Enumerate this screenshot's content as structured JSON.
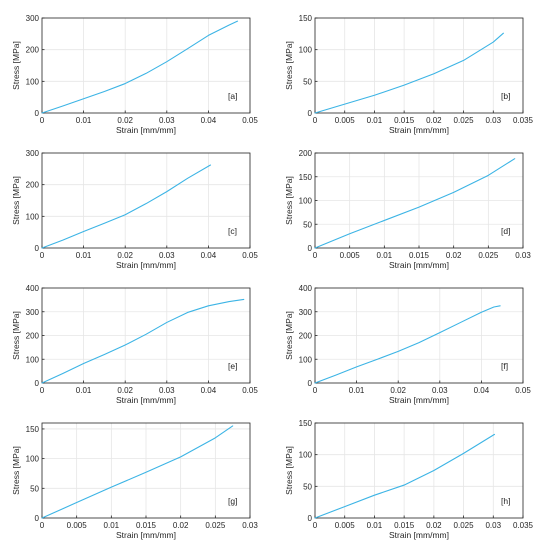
{
  "chart_data": [
    {
      "type": "line",
      "panel_label": "[a]",
      "xlabel": "Strain [mm/mm]",
      "ylabel": "Stress [MPa]",
      "xlim": [
        0,
        0.05
      ],
      "ylim": [
        0,
        300
      ],
      "xticks": [
        0,
        0.01,
        0.02,
        0.03,
        0.04,
        0.05
      ],
      "xtick_labels": [
        "0",
        "0.01",
        "0.02",
        "0.03",
        "0.04",
        "0.05"
      ],
      "yticks": [
        0,
        100,
        200,
        300
      ],
      "ytick_labels": [
        "0",
        "100",
        "200",
        "300"
      ],
      "grid": true,
      "series": [
        {
          "x": [
            0,
            0.005,
            0.01,
            0.015,
            0.02,
            0.025,
            0.03,
            0.035,
            0.04,
            0.045,
            0.047
          ],
          "y": [
            0,
            22,
            45,
            68,
            93,
            125,
            162,
            203,
            245,
            278,
            290
          ]
        }
      ]
    },
    {
      "type": "line",
      "panel_label": "[b]",
      "xlabel": "Strain [mm/mm]",
      "ylabel": "Stress [MPa]",
      "xlim": [
        0,
        0.035
      ],
      "ylim": [
        0,
        150
      ],
      "xticks": [
        0,
        0.005,
        0.01,
        0.015,
        0.02,
        0.025,
        0.03,
        0.035
      ],
      "xtick_labels": [
        "0",
        "0.005",
        "0.01",
        "0.015",
        "0.02",
        "0.025",
        "0.03",
        "0.035"
      ],
      "yticks": [
        0,
        50,
        100,
        150
      ],
      "ytick_labels": [
        "0",
        "50",
        "100",
        "150"
      ],
      "grid": true,
      "series": [
        {
          "x": [
            0,
            0.005,
            0.01,
            0.015,
            0.02,
            0.025,
            0.03,
            0.0317
          ],
          "y": [
            0,
            14,
            28,
            44,
            62,
            83,
            112,
            126
          ]
        }
      ]
    },
    {
      "type": "line",
      "panel_label": "[c]",
      "xlabel": "Strain [mm/mm]",
      "ylabel": "Stress [MPa]",
      "xlim": [
        0,
        0.05
      ],
      "ylim": [
        0,
        300
      ],
      "xticks": [
        0,
        0.01,
        0.02,
        0.03,
        0.04,
        0.05
      ],
      "xtick_labels": [
        "0",
        "0.01",
        "0.02",
        "0.03",
        "0.04",
        "0.05"
      ],
      "yticks": [
        0,
        100,
        200,
        300
      ],
      "ytick_labels": [
        "0",
        "100",
        "200",
        "300"
      ],
      "grid": true,
      "series": [
        {
          "x": [
            0,
            0.005,
            0.01,
            0.015,
            0.02,
            0.025,
            0.03,
            0.035,
            0.0405
          ],
          "y": [
            0,
            25,
            52,
            78,
            105,
            140,
            178,
            220,
            262
          ]
        }
      ]
    },
    {
      "type": "line",
      "panel_label": "[d]",
      "xlabel": "Strain [mm/mm]",
      "ylabel": "Stress [MPa]",
      "xlim": [
        0,
        0.03
      ],
      "ylim": [
        0,
        200
      ],
      "xticks": [
        0,
        0.005,
        0.01,
        0.015,
        0.02,
        0.025,
        0.03
      ],
      "xtick_labels": [
        "0",
        "0.005",
        "0.01",
        "0.015",
        "0.02",
        "0.025",
        "0.03"
      ],
      "yticks": [
        0,
        50,
        100,
        150,
        200
      ],
      "ytick_labels": [
        "0",
        "50",
        "100",
        "150",
        "200"
      ],
      "grid": true,
      "series": [
        {
          "x": [
            0,
            0.005,
            0.01,
            0.015,
            0.02,
            0.025,
            0.0288
          ],
          "y": [
            0,
            30,
            58,
            86,
            117,
            153,
            188
          ]
        }
      ]
    },
    {
      "type": "line",
      "panel_label": "[e]",
      "xlabel": "Strain [mm/mm]",
      "ylabel": "Stress [MPa]",
      "xlim": [
        0,
        0.05
      ],
      "ylim": [
        0,
        400
      ],
      "xticks": [
        0,
        0.01,
        0.02,
        0.03,
        0.04,
        0.05
      ],
      "xtick_labels": [
        "0",
        "0.01",
        "0.02",
        "0.03",
        "0.04",
        "0.05"
      ],
      "yticks": [
        0,
        100,
        200,
        300,
        400
      ],
      "ytick_labels": [
        "0",
        "100",
        "200",
        "300",
        "400"
      ],
      "grid": true,
      "series": [
        {
          "x": [
            0,
            0.005,
            0.01,
            0.015,
            0.02,
            0.025,
            0.03,
            0.035,
            0.04,
            0.045,
            0.0485
          ],
          "y": [
            0,
            40,
            82,
            120,
            160,
            205,
            255,
            297,
            325,
            343,
            352
          ]
        }
      ]
    },
    {
      "type": "line",
      "panel_label": "[f]",
      "xlabel": "Strain [mm/mm]",
      "ylabel": "Stress [MPa]",
      "xlim": [
        0,
        0.05
      ],
      "ylim": [
        0,
        400
      ],
      "xticks": [
        0,
        0.01,
        0.02,
        0.03,
        0.04,
        0.05
      ],
      "xtick_labels": [
        "0",
        "0.01",
        "0.02",
        "0.03",
        "0.04",
        "0.05"
      ],
      "yticks": [
        0,
        100,
        200,
        300,
        400
      ],
      "ytick_labels": [
        "0",
        "100",
        "200",
        "300",
        "400"
      ],
      "grid": true,
      "series": [
        {
          "x": [
            0,
            0.005,
            0.01,
            0.015,
            0.02,
            0.025,
            0.03,
            0.035,
            0.04,
            0.043,
            0.0445
          ],
          "y": [
            0,
            33,
            68,
            100,
            133,
            170,
            212,
            255,
            298,
            320,
            325
          ]
        }
      ]
    },
    {
      "type": "line",
      "panel_label": "[g]",
      "xlabel": "Strain [mm/mm]",
      "ylabel": "Stress [MPa]",
      "xlim": [
        0,
        0.03
      ],
      "ylim": [
        0,
        160
      ],
      "xticks": [
        0,
        0.005,
        0.01,
        0.015,
        0.02,
        0.025,
        0.03
      ],
      "xtick_labels": [
        "0",
        "0.005",
        "0.01",
        "0.015",
        "0.02",
        "0.025",
        "0.03"
      ],
      "yticks": [
        0,
        50,
        100,
        150
      ],
      "ytick_labels": [
        "0",
        "50",
        "100",
        "150"
      ],
      "grid": true,
      "series": [
        {
          "x": [
            0,
            0.005,
            0.01,
            0.015,
            0.02,
            0.025,
            0.0275
          ],
          "y": [
            0,
            26,
            52,
            77,
            103,
            135,
            155
          ]
        }
      ]
    },
    {
      "type": "line",
      "panel_label": "[h]",
      "xlabel": "Strain [mm/mm]",
      "ylabel": "Stress [MPa]",
      "xlim": [
        0,
        0.035
      ],
      "ylim": [
        0,
        150
      ],
      "xticks": [
        0,
        0.005,
        0.01,
        0.015,
        0.02,
        0.025,
        0.03,
        0.035
      ],
      "xtick_labels": [
        "0",
        "0.005",
        "0.01",
        "0.015",
        "0.02",
        "0.025",
        "0.03",
        "0.035"
      ],
      "yticks": [
        0,
        50,
        100,
        150
      ],
      "ytick_labels": [
        "0",
        "50",
        "100",
        "150"
      ],
      "grid": true,
      "series": [
        {
          "x": [
            0,
            0.005,
            0.01,
            0.015,
            0.02,
            0.025,
            0.0302
          ],
          "y": [
            0,
            18,
            36,
            52,
            75,
            102,
            132
          ]
        }
      ]
    }
  ],
  "colors": {
    "line": "#3cb4e5",
    "grid": "#e6e6e6",
    "axis": "#262626"
  }
}
